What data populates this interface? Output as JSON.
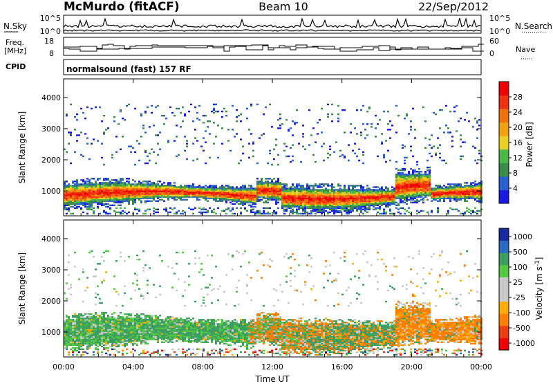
{
  "header": {
    "station": "McMurdo (fitACF)",
    "beam": "Beam 10",
    "date": "22/Sep/2012"
  },
  "noise_panel": {
    "left_label": "N.Sky",
    "left_ticks": [
      "10^5",
      "10^0"
    ],
    "right_ticks": [
      "10^5",
      "10^0"
    ],
    "right_label": "N.Search"
  },
  "freq_panel": {
    "left_label_line1": "Freq.",
    "left_label_line2": "[MHz]",
    "left_ticks": [
      "18",
      "8"
    ],
    "right_ticks": [
      "60",
      "0"
    ],
    "right_label": "Nave"
  },
  "cpid": {
    "label": "CPID",
    "text": "normalsound (fast) 157 RF"
  },
  "colors": {
    "power": [
      "#1a1ae6",
      "#2a5fd0",
      "#3a8a4a",
      "#48b848",
      "#e8d020",
      "#f0a010",
      "#f07010",
      "#f03010",
      "#f00000"
    ],
    "velocity": [
      "#f00000",
      "#f03c10",
      "#ff7f00",
      "#ffae00",
      "#c8c8c8",
      "#c8c8c8",
      "#52c840",
      "#3c9e60",
      "#2a6abf",
      "#1a2a9f"
    ]
  },
  "chart_data": [
    {
      "type": "heatmap",
      "name": "power",
      "ylabel": "Slant Range [km]",
      "ylim": [
        200,
        4600
      ],
      "yticks": [
        "1000",
        "2000",
        "3000",
        "4000"
      ],
      "xlim": [
        0,
        24
      ],
      "xticks": [
        "00:00",
        "04:00",
        "08:00",
        "12:00",
        "16:00",
        "20:00",
        "00:00"
      ],
      "colorbar_label": "Power [dB]",
      "colorbar_ticks": [
        "4",
        "8",
        "12",
        "16",
        "20",
        "24",
        "28"
      ]
    },
    {
      "type": "heatmap",
      "name": "velocity",
      "ylabel": "Slant Range [km]",
      "ylim": [
        200,
        4600
      ],
      "yticks": [
        "1000",
        "2000",
        "3000",
        "4000"
      ],
      "xlim": [
        0,
        24
      ],
      "xticks": [
        "00:00",
        "04:00",
        "08:00",
        "12:00",
        "16:00",
        "20:00",
        "00:00"
      ],
      "xlabel": "Time UT",
      "colorbar_label": "Velocity [m s-1]",
      "colorbar_ticks": [
        "1000",
        "500",
        "100",
        "25",
        "-25",
        "-100",
        "-500",
        "-1000"
      ]
    }
  ]
}
